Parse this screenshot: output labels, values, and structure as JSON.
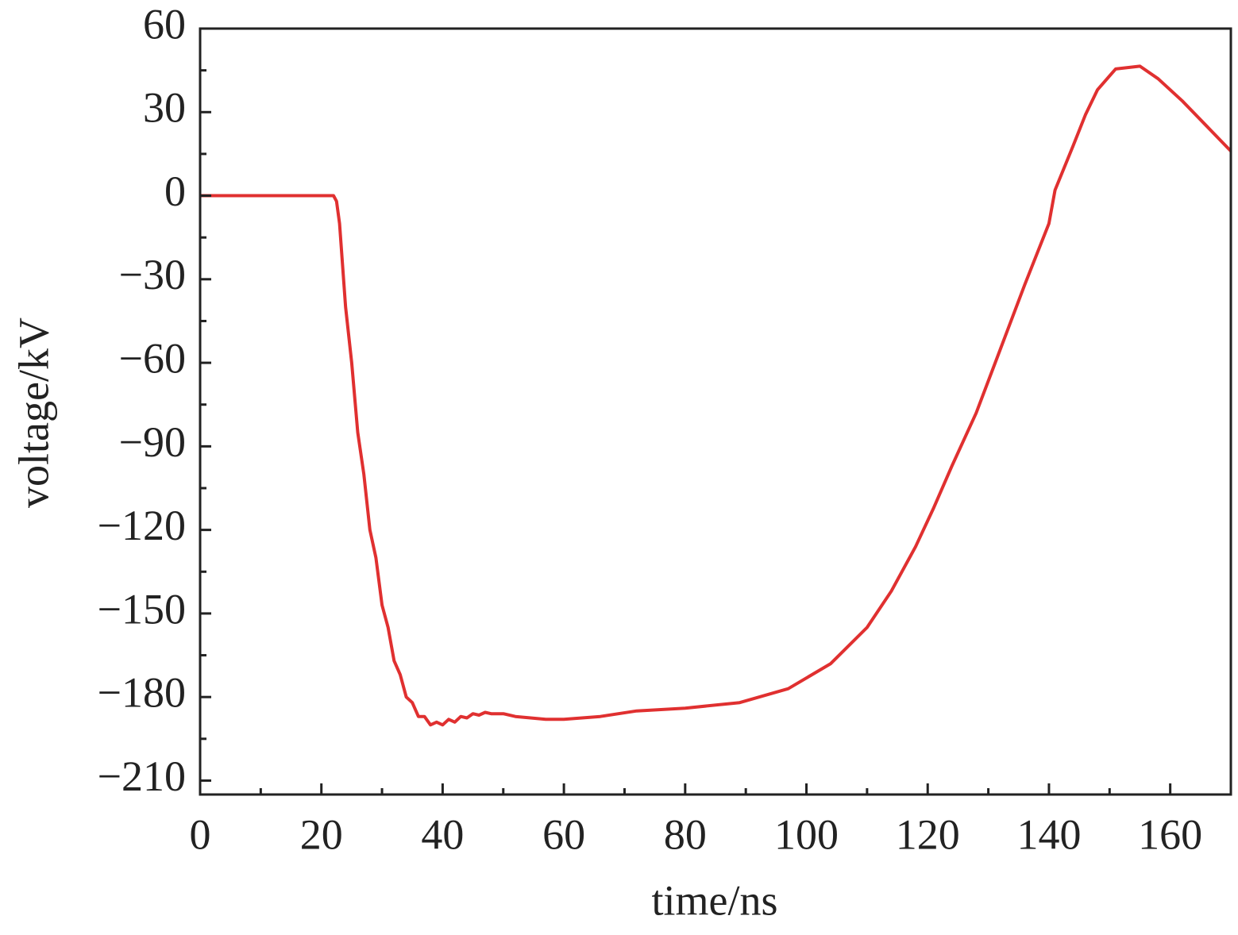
{
  "chart_data": {
    "type": "line",
    "x_label": "time/ns",
    "y_label": "voltage/kV",
    "xlim": [
      0,
      170
    ],
    "ylim": [
      -215,
      60
    ],
    "xticks": [
      0,
      20,
      40,
      60,
      80,
      100,
      120,
      140,
      160
    ],
    "xminorticks": [
      10,
      30,
      50,
      70,
      90,
      110,
      130,
      150
    ],
    "yticks": [
      60,
      30,
      0,
      {
        "value": -30,
        "label": "−30"
      },
      {
        "value": -60,
        "label": "−60"
      },
      {
        "value": -90,
        "label": "−90"
      },
      {
        "value": -120,
        "label": "−120"
      },
      {
        "value": -150,
        "label": "−150"
      },
      {
        "value": -180,
        "label": "−180"
      },
      {
        "value": -210,
        "label": "−210"
      }
    ],
    "yminorticks": [
      45,
      15,
      -15,
      -45,
      -75,
      -105,
      -135,
      -165,
      -195
    ],
    "series": [
      {
        "color": "#e03030",
        "x": [
          0,
          22,
          22.5,
          23,
          24,
          25,
          26,
          27,
          28,
          29,
          30,
          31,
          32,
          33,
          34,
          35,
          36,
          37,
          38,
          39,
          40,
          41,
          42,
          43,
          44,
          45,
          46,
          47,
          48,
          50,
          52,
          57,
          60,
          66,
          72,
          80,
          89,
          97,
          104,
          110,
          114,
          118,
          121,
          124,
          128,
          132,
          136,
          140,
          141,
          144,
          146,
          148,
          151,
          155,
          158,
          162,
          166,
          170
        ],
        "values": [
          0,
          0,
          -2,
          -10,
          -40,
          -60,
          -85,
          -100,
          -120,
          -130,
          -147,
          -155,
          -167,
          -172,
          -180,
          -182,
          -187,
          -187,
          -190,
          -189,
          -190,
          -188,
          -189,
          -187,
          -187.5,
          -186,
          -186.5,
          -185.5,
          -186,
          -186,
          -187,
          -188,
          -188,
          -187,
          -185,
          -184,
          -182,
          -177,
          -168,
          -155,
          -142,
          -126,
          -112,
          -97,
          -78,
          -55,
          -32,
          -10,
          2,
          18,
          29,
          38,
          45.5,
          46.5,
          42,
          34,
          25,
          16
        ]
      }
    ]
  }
}
